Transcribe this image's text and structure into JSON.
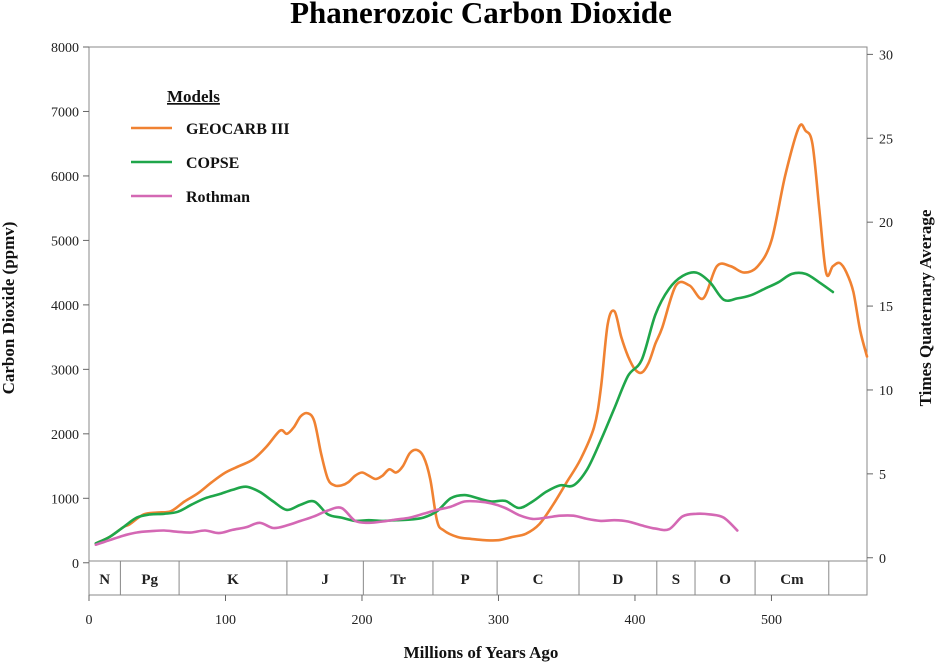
{
  "chart_data": {
    "type": "line",
    "title": "Phanerozoic Carbon Dioxide",
    "xlabel": "Millions of Years Ago",
    "ylabel": "Carbon Dioxide (ppmv)",
    "y2label": "Times Quaternary Average",
    "xlim": [
      0,
      570
    ],
    "ylim": [
      -500,
      8000
    ],
    "y2lim": [
      -2.22,
      30.44
    ],
    "x_ticks": [
      0,
      100,
      200,
      300,
      400,
      500
    ],
    "y_ticks": [
      0,
      1000,
      2000,
      3000,
      4000,
      5000,
      6000,
      7000,
      8000
    ],
    "y2_ticks": [
      0,
      5,
      10,
      15,
      20,
      25,
      30
    ],
    "legend": {
      "title": "Models",
      "position": "top-left"
    },
    "periods": [
      {
        "label": "N",
        "start": 0,
        "end": 23
      },
      {
        "label": "Pg",
        "start": 23,
        "end": 66
      },
      {
        "label": "K",
        "start": 66,
        "end": 145
      },
      {
        "label": "J",
        "start": 145,
        "end": 201
      },
      {
        "label": "Tr",
        "start": 201,
        "end": 252
      },
      {
        "label": "P",
        "start": 252,
        "end": 299
      },
      {
        "label": "C",
        "start": 299,
        "end": 359
      },
      {
        "label": "D",
        "start": 359,
        "end": 416
      },
      {
        "label": "S",
        "start": 416,
        "end": 444
      },
      {
        "label": "O",
        "start": 444,
        "end": 488
      },
      {
        "label": "Cm",
        "start": 488,
        "end": 542
      }
    ],
    "series": [
      {
        "name": "GEOCARB III",
        "color": "#f08232",
        "x": [
          5,
          15,
          25,
          30,
          40,
          50,
          60,
          70,
          80,
          90,
          100,
          110,
          120,
          130,
          140,
          145,
          150,
          155,
          160,
          165,
          170,
          175,
          180,
          185,
          190,
          195,
          200,
          205,
          210,
          215,
          220,
          225,
          230,
          235,
          240,
          245,
          250,
          255,
          260,
          270,
          280,
          290,
          300,
          310,
          320,
          330,
          340,
          350,
          360,
          370,
          375,
          380,
          385,
          390,
          395,
          400,
          405,
          410,
          415,
          420,
          430,
          440,
          450,
          460,
          470,
          480,
          490,
          500,
          510,
          520,
          525,
          530,
          535,
          540,
          545,
          550,
          555,
          560,
          565,
          570
        ],
        "y": [
          300,
          400,
          550,
          600,
          750,
          780,
          800,
          950,
          1080,
          1250,
          1400,
          1500,
          1600,
          1800,
          2050,
          2000,
          2100,
          2270,
          2320,
          2200,
          1700,
          1300,
          1200,
          1200,
          1250,
          1350,
          1400,
          1350,
          1300,
          1350,
          1450,
          1400,
          1500,
          1700,
          1750,
          1650,
          1300,
          650,
          500,
          400,
          370,
          350,
          350,
          400,
          450,
          600,
          900,
          1250,
          1600,
          2100,
          2700,
          3700,
          3900,
          3500,
          3200,
          3000,
          2950,
          3100,
          3400,
          3650,
          4300,
          4300,
          4100,
          4600,
          4600,
          4500,
          4600,
          5000,
          6000,
          6750,
          6700,
          6500,
          5500,
          4500,
          4600,
          4650,
          4500,
          4200,
          3600,
          3200
        ]
      },
      {
        "name": "COPSE",
        "color": "#1fa64a",
        "x": [
          5,
          15,
          25,
          35,
          45,
          55,
          65,
          75,
          85,
          95,
          105,
          115,
          125,
          135,
          145,
          155,
          165,
          175,
          185,
          195,
          205,
          215,
          225,
          235,
          245,
          255,
          265,
          275,
          285,
          295,
          305,
          315,
          325,
          335,
          345,
          355,
          365,
          375,
          385,
          395,
          405,
          415,
          425,
          435,
          445,
          455,
          465,
          475,
          485,
          495,
          505,
          515,
          525,
          535,
          545
        ],
        "y": [
          300,
          400,
          550,
          700,
          750,
          760,
          790,
          900,
          1000,
          1060,
          1130,
          1180,
          1100,
          950,
          820,
          900,
          950,
          750,
          700,
          650,
          660,
          650,
          660,
          670,
          700,
          800,
          1000,
          1050,
          1000,
          950,
          960,
          850,
          950,
          1100,
          1200,
          1200,
          1450,
          1900,
          2400,
          2900,
          3150,
          3850,
          4250,
          4450,
          4500,
          4350,
          4080,
          4100,
          4150,
          4250,
          4350,
          4480,
          4480,
          4350,
          4200
        ]
      },
      {
        "name": "Rothman",
        "color": "#d468b4",
        "x": [
          5,
          15,
          25,
          35,
          45,
          55,
          65,
          75,
          85,
          95,
          105,
          115,
          125,
          135,
          145,
          155,
          165,
          175,
          185,
          195,
          205,
          215,
          225,
          235,
          245,
          255,
          265,
          275,
          285,
          295,
          305,
          315,
          325,
          335,
          345,
          355,
          365,
          375,
          385,
          395,
          405,
          415,
          425,
          435,
          445,
          455,
          465,
          475
        ],
        "y": [
          280,
          350,
          420,
          470,
          490,
          500,
          480,
          470,
          500,
          460,
          510,
          550,
          620,
          540,
          580,
          650,
          720,
          810,
          850,
          650,
          620,
          640,
          670,
          700,
          760,
          820,
          870,
          950,
          950,
          920,
          850,
          740,
          680,
          700,
          730,
          730,
          680,
          650,
          660,
          640,
          580,
          530,
          520,
          720,
          760,
          750,
          700,
          500
        ]
      }
    ]
  }
}
